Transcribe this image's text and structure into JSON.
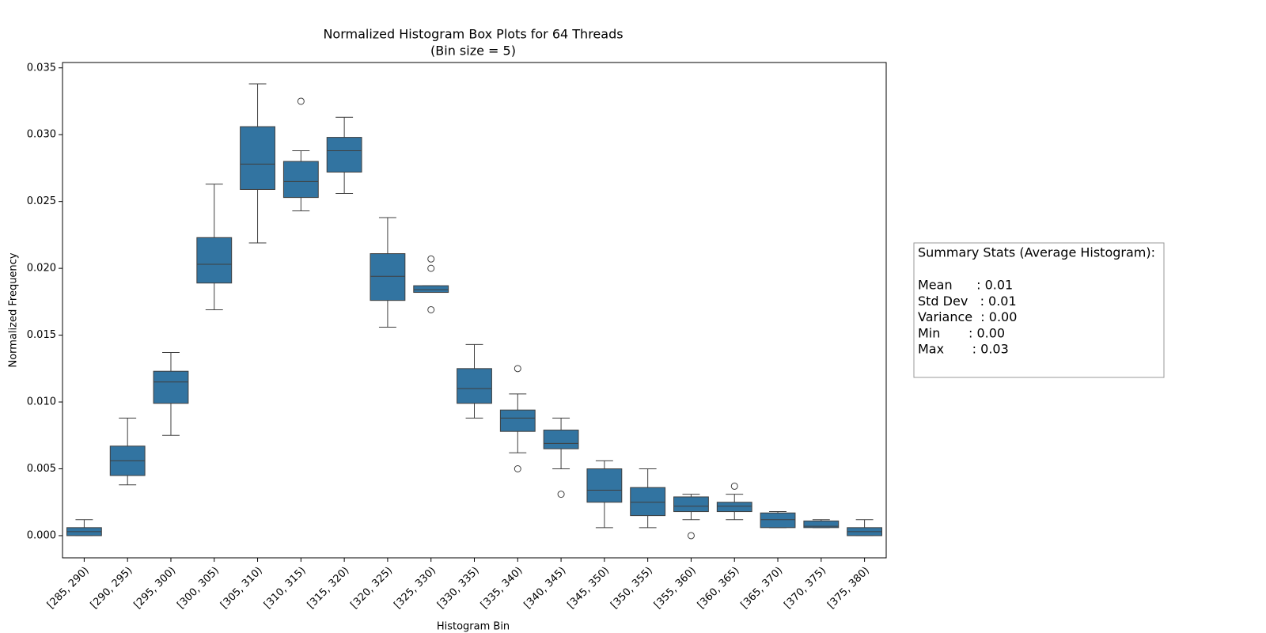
{
  "chart_data": {
    "type": "box",
    "title": "Normalized Histogram Box Plots for 64 Threads",
    "subtitle": "(Bin size = 5)",
    "x_label": "Histogram Bin",
    "y_label": "Normalized Frequency",
    "color": "#3274a1",
    "ylim": [
      -0.00166,
      0.0354
    ],
    "yticks": [
      {
        "value": 0,
        "label": "0.000"
      },
      0.005,
      {
        "value": 0.01,
        "label": "0.010"
      },
      0.015,
      {
        "value": 0.02,
        "label": "0.020"
      },
      0.025,
      {
        "value": 0.03,
        "label": "0.030"
      },
      0.035
    ],
    "categories": [
      "[285, 290)",
      "[290, 295)",
      "[295, 300)",
      "[300, 305)",
      "[305, 310)",
      "[310, 315)",
      "[315, 320)",
      "[320, 325)",
      "[325, 330)",
      "[330, 335)",
      "[335, 340)",
      "[340, 345)",
      "[345, 350)",
      "[350, 355)",
      "[355, 360)",
      "[360, 365)",
      "[365, 370)",
      "[370, 375)",
      "[375, 380)"
    ],
    "boxes": [
      {
        "low": 0,
        "q1": 0,
        "median": 0.0003,
        "q3": 0.0006,
        "high": 0.0012,
        "outliers": []
      },
      {
        "low": 0.0038,
        "q1": 0.0045,
        "median": 0.0056,
        "q3": 0.0067,
        "high": 0.0088,
        "outliers": []
      },
      {
        "low": 0.0075,
        "q1": 0.0099,
        "median": 0.0115,
        "q3": 0.0123,
        "high": 0.0137,
        "outliers": []
      },
      {
        "low": 0.0169,
        "q1": 0.0189,
        "median": 0.0203,
        "q3": 0.0223,
        "high": 0.0263,
        "outliers": []
      },
      {
        "low": 0.0219,
        "q1": 0.0259,
        "median": 0.0278,
        "q3": 0.0306,
        "high": 0.0338,
        "outliers": []
      },
      {
        "low": 0.0243,
        "q1": 0.0253,
        "median": 0.0265,
        "q3": 0.028,
        "high": 0.0288,
        "outliers": [
          0.0325
        ]
      },
      {
        "low": 0.0256,
        "q1": 0.0272,
        "median": 0.0288,
        "q3": 0.0298,
        "high": 0.0313,
        "outliers": []
      },
      {
        "low": 0.0156,
        "q1": 0.0176,
        "median": 0.0194,
        "q3": 0.0211,
        "high": 0.0238,
        "outliers": []
      },
      {
        "low": 0.0182,
        "q1": 0.0182,
        "median": 0.0184,
        "q3": 0.0187,
        "high": 0.0187,
        "outliers": [
          0.0207,
          0.02,
          0.0169
        ]
      },
      {
        "low": 0.0088,
        "q1": 0.0099,
        "median": 0.011,
        "q3": 0.0125,
        "high": 0.0143,
        "outliers": []
      },
      {
        "low": 0.0062,
        "q1": 0.0078,
        "median": 0.0088,
        "q3": 0.0094,
        "high": 0.0106,
        "outliers": [
          0.0125,
          0.005
        ]
      },
      {
        "low": 0.005,
        "q1": 0.0065,
        "median": 0.0069,
        "q3": 0.0079,
        "high": 0.0088,
        "outliers": [
          0.0031
        ]
      },
      {
        "low": 0.0006,
        "q1": 0.0025,
        "median": 0.0034,
        "q3": 0.005,
        "high": 0.0056,
        "outliers": []
      },
      {
        "low": 0.0006,
        "q1": 0.0015,
        "median": 0.0025,
        "q3": 0.0036,
        "high": 0.005,
        "outliers": []
      },
      {
        "low": 0.0012,
        "q1": 0.0018,
        "median": 0.0022,
        "q3": 0.0029,
        "high": 0.0031,
        "outliers": [
          0
        ]
      },
      {
        "low": 0.0012,
        "q1": 0.0018,
        "median": 0.0022,
        "q3": 0.0025,
        "high": 0.0031,
        "outliers": [
          0.0037
        ]
      },
      {
        "low": 0.0006,
        "q1": 0.0006,
        "median": 0.0012,
        "q3": 0.0017,
        "high": 0.0018,
        "outliers": []
      },
      {
        "low": 0.0006,
        "q1": 0.0006,
        "median": 0.0007,
        "q3": 0.0011,
        "high": 0.0012,
        "outliers": []
      },
      {
        "low": 0,
        "q1": 0,
        "median": 0.0003,
        "q3": 0.0006,
        "high": 0.0012,
        "outliers": []
      }
    ],
    "stats_box": {
      "title": "Summary Stats (Average Histogram):",
      "lines": [
        "Mean      : 0.01",
        "Std Dev   : 0.01",
        "Variance  : 0.00",
        "Min       : 0.00",
        "Max       : 0.03"
      ]
    }
  }
}
